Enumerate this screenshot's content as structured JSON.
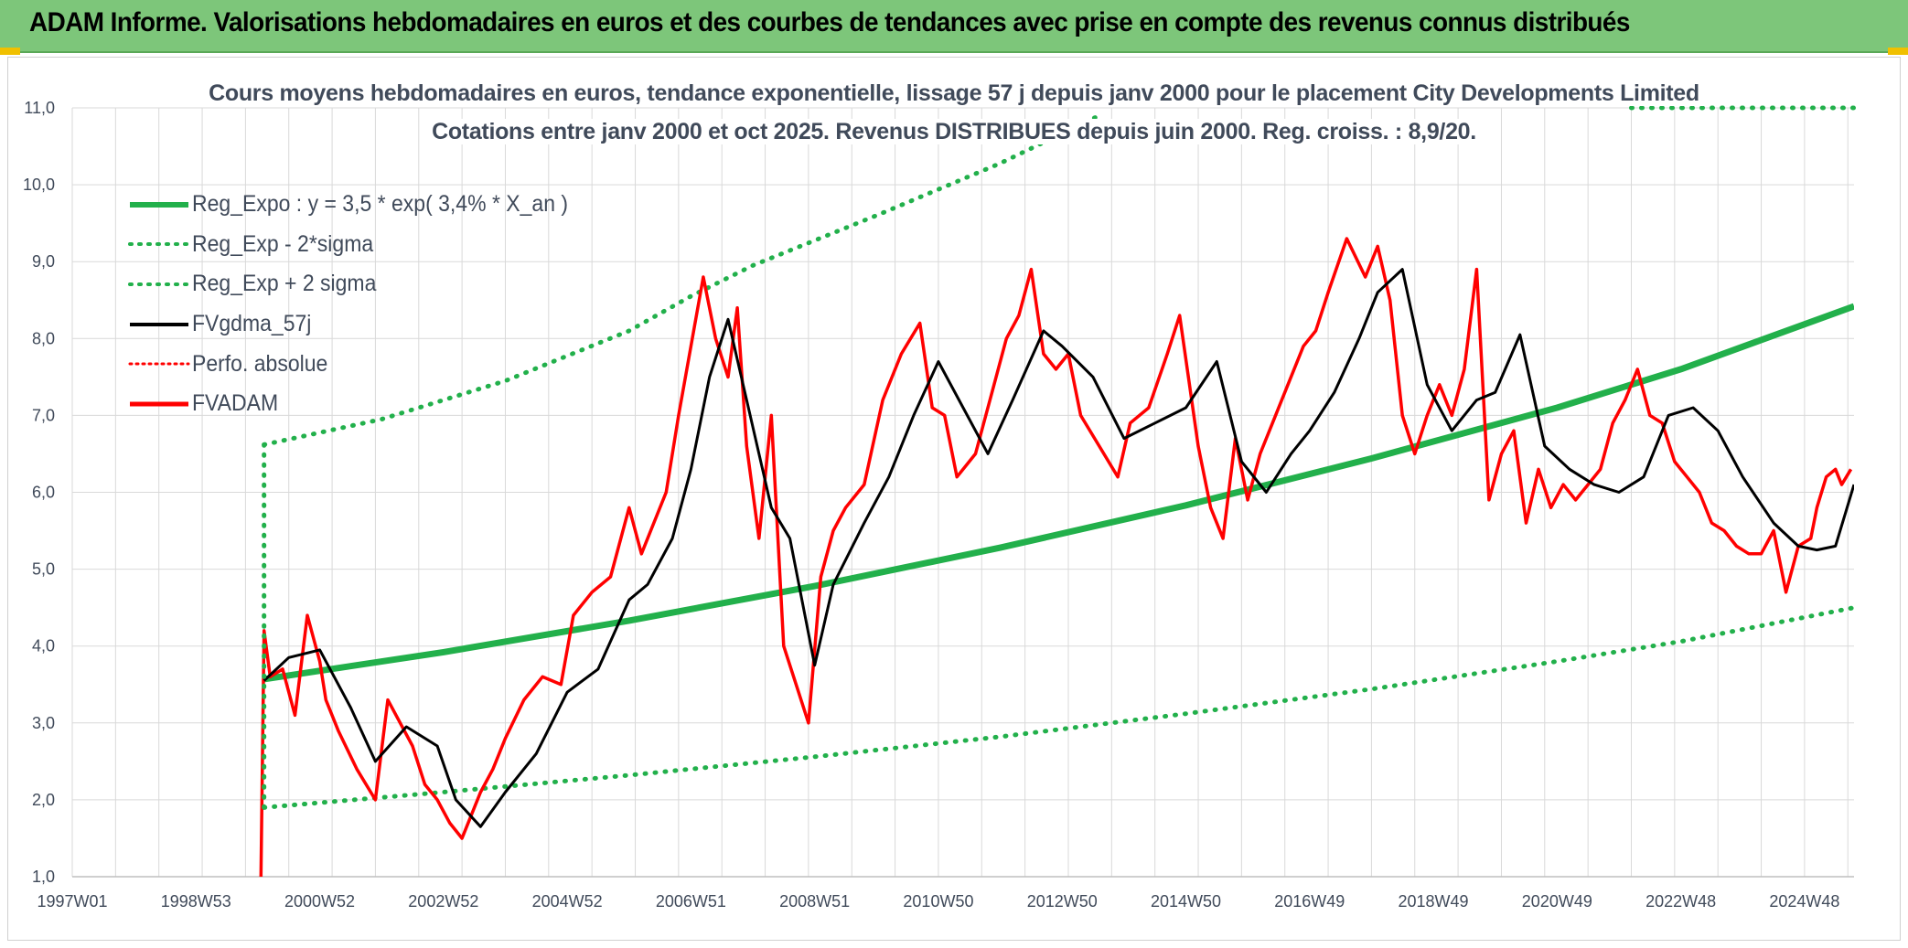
{
  "banner": {
    "title": "ADAM Informe. Valorisations hebdomadaires en euros et des courbes de tendances avec prise en compte des revenus connus distribués"
  },
  "colors": {
    "banner_bg": "#7dc67a",
    "trend_green": "#22b04b",
    "sigma_green": "#22b04b",
    "smooth_black": "#000000",
    "price_red": "#ff0000",
    "grid": "#d9d9d9",
    "text": "#404a5a"
  },
  "chart_data": {
    "type": "line",
    "title": "Cours moyens hebdomadaires en euros, tendance exponentielle, lissage 57 j depuis janv 2000 pour le placement City Developments Limited",
    "subtitle": "Cotations entre janv 2000 et oct 2025. Revenus DISTRIBUES depuis juin 2000. Reg. croiss. : 8,9/20.",
    "xlabel": "",
    "ylabel": "",
    "ylim": [
      1.0,
      11.0
    ],
    "xlim": [
      1997.0,
      2025.8
    ],
    "grid": true,
    "legend_position": "top-left",
    "y_ticks": [
      "1,0",
      "2,0",
      "3,0",
      "4,0",
      "5,0",
      "6,0",
      "7,0",
      "8,0",
      "9,0",
      "10,0",
      "11,0"
    ],
    "x_ticks": [
      {
        "label": "1997W01",
        "x": 1997.0
      },
      {
        "label": "1998W53",
        "x": 1999.0
      },
      {
        "label": "2000W52",
        "x": 2001.0
      },
      {
        "label": "2002W52",
        "x": 2003.0
      },
      {
        "label": "2004W52",
        "x": 2005.0
      },
      {
        "label": "2006W51",
        "x": 2007.0
      },
      {
        "label": "2008W51",
        "x": 2009.0
      },
      {
        "label": "2010W50",
        "x": 2011.0
      },
      {
        "label": "2012W50",
        "x": 2013.0
      },
      {
        "label": "2014W50",
        "x": 2015.0
      },
      {
        "label": "2016W49",
        "x": 2017.0
      },
      {
        "label": "2018W49",
        "x": 2019.0
      },
      {
        "label": "2020W49",
        "x": 2021.0
      },
      {
        "label": "2022W48",
        "x": 2023.0
      },
      {
        "label": "2024W48",
        "x": 2025.0
      }
    ],
    "series": [
      {
        "name": "Reg_Expo : y = 3,5 * exp( 3,4% *  X_an )",
        "style": "solid-thick",
        "color": "#22b04b",
        "x": [
          2000.1,
          2003,
          2006,
          2009,
          2012,
          2015,
          2018,
          2021,
          2023,
          2025.8
        ],
        "y": [
          3.57,
          3.92,
          4.33,
          4.78,
          5.28,
          5.83,
          6.44,
          7.1,
          7.6,
          8.42
        ]
      },
      {
        "name": "Reg_Exp - 2*sigma",
        "style": "dotted",
        "color": "#22b04b",
        "x": [
          2000.1,
          2003,
          2006,
          2009,
          2012,
          2015,
          2018,
          2021,
          2023,
          2025.8
        ],
        "y": [
          1.9,
          2.1,
          2.32,
          2.56,
          2.82,
          3.12,
          3.44,
          3.8,
          4.06,
          4.5
        ]
      },
      {
        "name": "Reg_Exp + 2 sigma",
        "style": "dotted",
        "color": "#22b04b",
        "x": [
          2000.1,
          2002,
          2004,
          2006,
          2007,
          2008,
          2010,
          2012,
          2013.6
        ],
        "y": [
          6.62,
          6.95,
          7.45,
          8.1,
          8.55,
          8.95,
          9.6,
          10.28,
          10.9
        ]
      },
      {
        "name": "FVgdma_57j",
        "style": "solid",
        "color": "#000000",
        "x": [
          2000.1,
          2000.5,
          2001.0,
          2001.5,
          2001.9,
          2002.4,
          2002.9,
          2003.2,
          2003.6,
          2004.0,
          2004.5,
          2005.0,
          2005.5,
          2006.0,
          2006.3,
          2006.7,
          2007.0,
          2007.3,
          2007.6,
          2007.9,
          2008.3,
          2008.6,
          2009.0,
          2009.3,
          2009.8,
          2010.2,
          2010.6,
          2011.0,
          2011.4,
          2011.8,
          2012.2,
          2012.7,
          2013.0,
          2013.5,
          2014.0,
          2014.5,
          2015.0,
          2015.5,
          2015.9,
          2016.3,
          2016.7,
          2017.0,
          2017.4,
          2017.8,
          2018.1,
          2018.5,
          2018.9,
          2019.3,
          2019.7,
          2020.0,
          2020.4,
          2020.8,
          2021.2,
          2021.6,
          2022.0,
          2022.4,
          2022.8,
          2023.2,
          2023.6,
          2024.0,
          2024.5,
          2024.9,
          2025.2,
          2025.5,
          2025.8
        ],
        "y": [
          3.55,
          3.85,
          3.95,
          3.2,
          2.5,
          2.95,
          2.7,
          2.0,
          1.65,
          2.1,
          2.6,
          3.4,
          3.7,
          4.6,
          4.8,
          5.4,
          6.3,
          7.5,
          8.25,
          7.2,
          5.8,
          5.4,
          3.75,
          4.8,
          5.6,
          6.2,
          7.0,
          7.7,
          7.1,
          6.5,
          7.2,
          8.1,
          7.9,
          7.5,
          6.7,
          6.9,
          7.1,
          7.7,
          6.4,
          6.0,
          6.5,
          6.8,
          7.3,
          8.0,
          8.6,
          8.9,
          7.4,
          6.8,
          7.2,
          7.3,
          8.05,
          6.6,
          6.3,
          6.1,
          6.0,
          6.2,
          7.0,
          7.1,
          6.8,
          6.2,
          5.6,
          5.3,
          5.25,
          5.3,
          6.1
        ]
      },
      {
        "name": "Perfo. absolue",
        "style": "dotted",
        "color": "#ff0000",
        "x": [],
        "y": []
      },
      {
        "name": "FVADAM",
        "style": "solid-thick",
        "color": "#ff0000",
        "x": [
          2000.05,
          2000.1,
          2000.2,
          2000.4,
          2000.6,
          2000.8,
          2000.9,
          2001.0,
          2001.1,
          2001.3,
          2001.6,
          2001.9,
          2002.1,
          2002.3,
          2002.5,
          2002.7,
          2002.9,
          2003.1,
          2003.3,
          2003.6,
          2003.8,
          2004.0,
          2004.3,
          2004.6,
          2004.9,
          2005.1,
          2005.4,
          2005.7,
          2006.0,
          2006.2,
          2006.4,
          2006.6,
          2006.8,
          2007.0,
          2007.2,
          2007.4,
          2007.6,
          2007.75,
          2007.9,
          2008.1,
          2008.3,
          2008.5,
          2008.7,
          2008.9,
          2009.1,
          2009.3,
          2009.5,
          2009.8,
          2010.1,
          2010.4,
          2010.7,
          2010.9,
          2011.1,
          2011.3,
          2011.6,
          2011.9,
          2012.1,
          2012.3,
          2012.5,
          2012.7,
          2012.9,
          2013.1,
          2013.3,
          2013.6,
          2013.9,
          2014.1,
          2014.4,
          2014.7,
          2014.9,
          2015.2,
          2015.4,
          2015.6,
          2015.8,
          2016.0,
          2016.2,
          2016.4,
          2016.6,
          2016.9,
          2017.1,
          2017.3,
          2017.6,
          2017.9,
          2018.1,
          2018.3,
          2018.5,
          2018.7,
          2018.9,
          2019.1,
          2019.3,
          2019.5,
          2019.7,
          2019.9,
          2020.1,
          2020.3,
          2020.5,
          2020.7,
          2020.9,
          2021.1,
          2021.3,
          2021.5,
          2021.7,
          2021.9,
          2022.1,
          2022.3,
          2022.5,
          2022.7,
          2022.9,
          2023.1,
          2023.3,
          2023.5,
          2023.7,
          2023.9,
          2024.1,
          2024.3,
          2024.5,
          2024.7,
          2024.9,
          2025.1,
          2025.2,
          2025.35,
          2025.5,
          2025.6,
          2025.75
        ],
        "y": [
          1.0,
          4.2,
          3.6,
          3.7,
          3.1,
          4.4,
          4.1,
          3.8,
          3.3,
          2.9,
          2.4,
          2.0,
          3.3,
          3.0,
          2.7,
          2.2,
          2.0,
          1.7,
          1.5,
          2.1,
          2.4,
          2.8,
          3.3,
          3.6,
          3.5,
          4.4,
          4.7,
          4.9,
          5.8,
          5.2,
          5.6,
          6.0,
          7.0,
          7.9,
          8.8,
          8.0,
          7.5,
          8.4,
          6.6,
          5.4,
          7.0,
          4.0,
          3.5,
          3.0,
          4.9,
          5.5,
          5.8,
          6.1,
          7.2,
          7.8,
          8.2,
          7.1,
          7.0,
          6.2,
          6.5,
          7.4,
          8.0,
          8.3,
          8.9,
          7.8,
          7.6,
          7.8,
          7.0,
          6.6,
          6.2,
          6.9,
          7.1,
          7.8,
          8.3,
          6.6,
          5.8,
          5.4,
          6.7,
          5.9,
          6.5,
          6.9,
          7.3,
          7.9,
          8.1,
          8.6,
          9.3,
          8.8,
          9.2,
          8.5,
          7.0,
          6.5,
          7.0,
          7.4,
          7.0,
          7.6,
          8.9,
          5.9,
          6.5,
          6.8,
          5.6,
          6.3,
          5.8,
          6.1,
          5.9,
          6.1,
          6.3,
          6.9,
          7.2,
          7.6,
          7.0,
          6.9,
          6.4,
          6.2,
          6.0,
          5.6,
          5.5,
          5.3,
          5.2,
          5.2,
          5.5,
          4.7,
          5.3,
          5.4,
          5.8,
          6.2,
          6.3,
          6.1,
          6.3
        ]
      }
    ]
  }
}
